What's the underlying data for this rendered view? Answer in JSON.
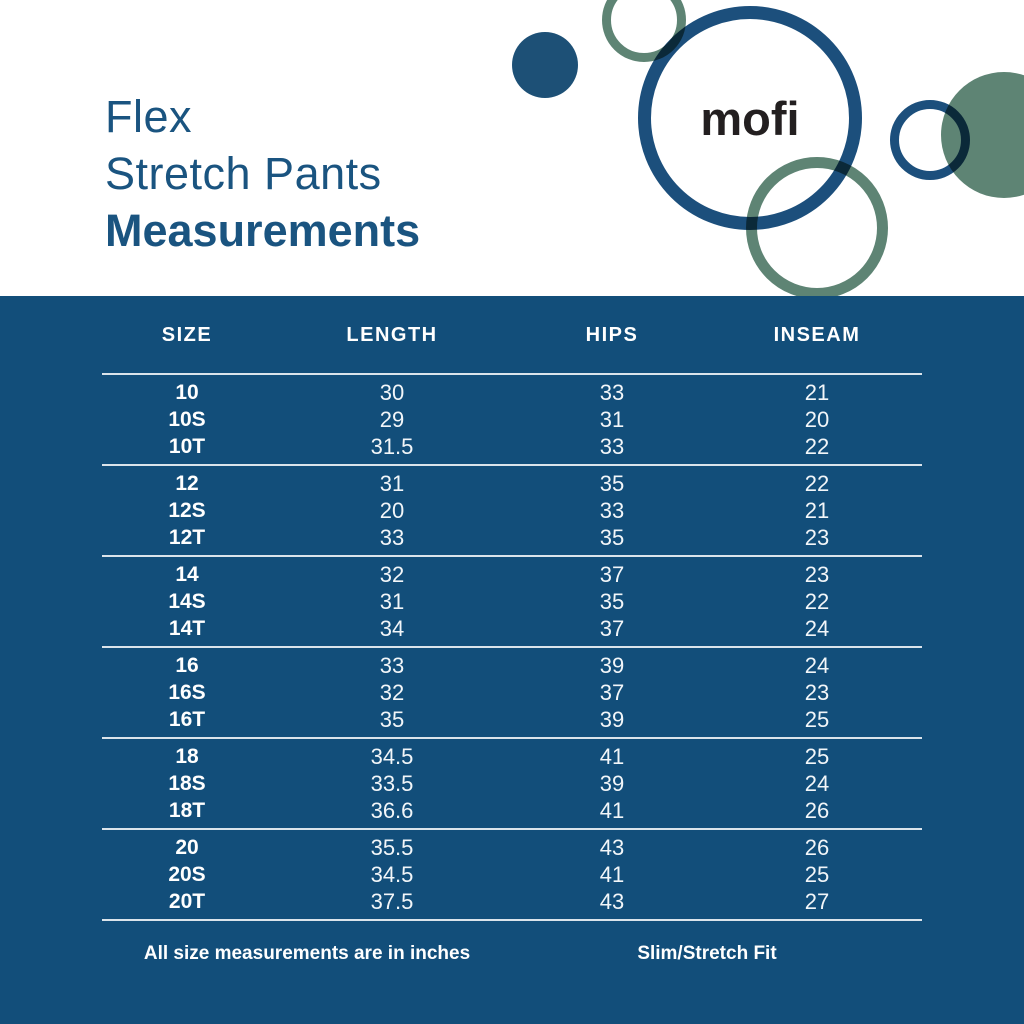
{
  "title": {
    "line1": "Flex",
    "line2": "Stretch Pants",
    "line3": "Measurements"
  },
  "logo": {
    "text": "mofi"
  },
  "table": {
    "headers": [
      "SIZE",
      "LENGTH",
      "HIPS",
      "INSEAM"
    ],
    "groups": [
      {
        "rows": [
          [
            "10",
            "30",
            "33",
            "21"
          ],
          [
            "10S",
            "29",
            "31",
            "20"
          ],
          [
            "10T",
            "31.5",
            "33",
            "22"
          ]
        ]
      },
      {
        "rows": [
          [
            "12",
            "31",
            "35",
            "22"
          ],
          [
            "12S",
            "20",
            "33",
            "21"
          ],
          [
            "12T",
            "33",
            "35",
            "23"
          ]
        ]
      },
      {
        "rows": [
          [
            "14",
            "32",
            "37",
            "23"
          ],
          [
            "14S",
            "31",
            "35",
            "22"
          ],
          [
            "14T",
            "34",
            "37",
            "24"
          ]
        ]
      },
      {
        "rows": [
          [
            "16",
            "33",
            "39",
            "24"
          ],
          [
            "16S",
            "32",
            "37",
            "23"
          ],
          [
            "16T",
            "35",
            "39",
            "25"
          ]
        ]
      },
      {
        "rows": [
          [
            "18",
            "34.5",
            "41",
            "25"
          ],
          [
            "18S",
            "33.5",
            "39",
            "24"
          ],
          [
            "18T",
            "36.6",
            "41",
            "26"
          ]
        ]
      },
      {
        "rows": [
          [
            "20",
            "35.5",
            "43",
            "26"
          ],
          [
            "20S",
            "34.5",
            "41",
            "25"
          ],
          [
            "20T",
            "37.5",
            "43",
            "27"
          ]
        ]
      }
    ]
  },
  "footer": {
    "left": "All size measurements are in inches",
    "right": "Slim/Stretch Fit"
  },
  "colors": {
    "band_blue": "#124E7A",
    "title_blue": "#1A5480",
    "circle_blue": "#1C4F7C",
    "sage_green": "#5E8474",
    "logo_black": "#231F20",
    "text_white": "#FFFFFF"
  }
}
